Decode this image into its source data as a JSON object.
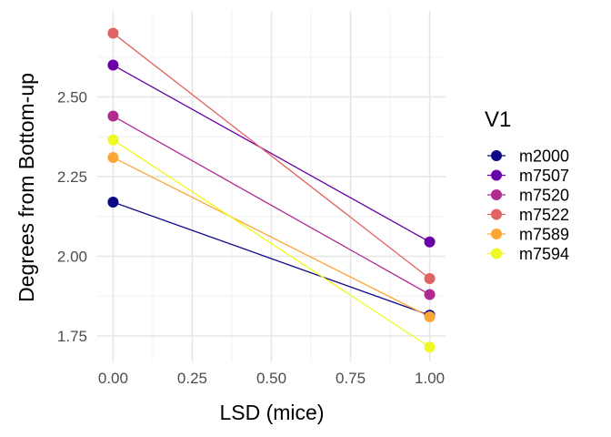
{
  "chart_data": {
    "type": "line",
    "xlabel": "LSD (mice)",
    "ylabel": "Degrees from Bottom-up",
    "xlim": [
      -0.05,
      1.05
    ],
    "ylim": [
      1.67,
      2.77
    ],
    "x_ticks": [
      0.0,
      0.25,
      0.5,
      0.75,
      1.0
    ],
    "x_tick_labels": [
      "0.00",
      "0.25",
      "0.50",
      "0.75",
      "1.00"
    ],
    "y_ticks": [
      1.75,
      2.0,
      2.25,
      2.5
    ],
    "y_tick_labels": [
      "1.75",
      "2.00",
      "2.25",
      "2.50"
    ],
    "grid": true,
    "legend": {
      "title": "V1",
      "position": "right"
    },
    "x": [
      0,
      1
    ],
    "series": [
      {
        "name": "m2000",
        "color": "#0d0887",
        "values": [
          2.17,
          1.815
        ]
      },
      {
        "name": "m7507",
        "color": "#6a00a8",
        "values": [
          2.6,
          2.045
        ]
      },
      {
        "name": "m7520",
        "color": "#b12a90",
        "values": [
          2.44,
          1.88
        ]
      },
      {
        "name": "m7522",
        "color": "#e16462",
        "values": [
          2.7,
          1.93
        ]
      },
      {
        "name": "m7589",
        "color": "#fca636",
        "values": [
          2.31,
          1.81
        ]
      },
      {
        "name": "m7594",
        "color": "#f0f921",
        "values": [
          2.365,
          1.715
        ]
      }
    ]
  }
}
